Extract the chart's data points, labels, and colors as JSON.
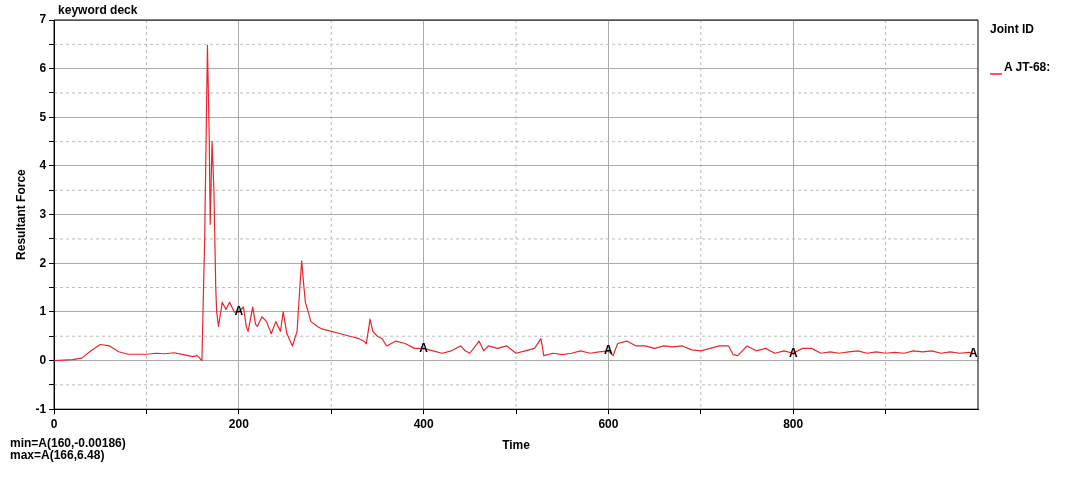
{
  "chart_data": {
    "type": "line",
    "title": "keyword deck",
    "xlabel": "Time",
    "ylabel": "Resultant Force",
    "legend_title": "Joint ID",
    "legend": "top right",
    "grid": true,
    "marker": "none",
    "line_style": "solid",
    "xlim": [
      0,
      1000
    ],
    "ylim": [
      -1,
      7
    ],
    "xticks": [
      0,
      {
        "value": 100,
        "label": null
      },
      200,
      {
        "value": 300,
        "label": null
      },
      400,
      {
        "value": 500,
        "label": null
      },
      600,
      {
        "value": 700,
        "label": null
      },
      800,
      {
        "value": 900,
        "label": null
      }
    ],
    "yticks": [
      -1,
      {
        "value": -0.5,
        "label": null
      },
      0,
      {
        "value": 0.5,
        "label": null
      },
      1,
      {
        "value": 1.5,
        "label": null
      },
      2,
      {
        "value": 2.5,
        "label": null
      },
      3,
      {
        "value": 3.5,
        "label": null
      },
      4,
      {
        "value": 4.5,
        "label": null
      },
      5,
      {
        "value": 5.5,
        "label": null
      },
      6,
      {
        "value": 6.5,
        "label": null
      },
      7
    ],
    "series": [
      {
        "name": "A JT-68:",
        "color": "#e8262b",
        "x": [
          0,
          20,
          30,
          40,
          50,
          60,
          70,
          80,
          100,
          110,
          120,
          130,
          140,
          150,
          155,
          160,
          163,
          166,
          168,
          169,
          171,
          173,
          175,
          176,
          178,
          182,
          186,
          190,
          195,
          200,
          205,
          208,
          210,
          215,
          218,
          220,
          225,
          230,
          235,
          240,
          245,
          248,
          252,
          258,
          263,
          266,
          268,
          270,
          272,
          275,
          278,
          285,
          290,
          300,
          310,
          320,
          330,
          335,
          338,
          342,
          345,
          350,
          355,
          360,
          370,
          380,
          390,
          400,
          410,
          420,
          430,
          440,
          445,
          450,
          460,
          465,
          470,
          480,
          490,
          500,
          510,
          520,
          527,
          530,
          540,
          550,
          560,
          570,
          580,
          590,
          600,
          605,
          610,
          620,
          630,
          640,
          650,
          660,
          670,
          680,
          690,
          700,
          710,
          720,
          730,
          735,
          740,
          750,
          760,
          770,
          780,
          790,
          800,
          810,
          820,
          830,
          840,
          850,
          860,
          870,
          880,
          890,
          900,
          910,
          920,
          930,
          940,
          950,
          960,
          970,
          980,
          990,
          995
        ],
        "values": [
          0,
          0.02,
          0.05,
          0.2,
          0.33,
          0.3,
          0.18,
          0.13,
          0.13,
          0.15,
          0.14,
          0.16,
          0.12,
          0.08,
          0.1,
          0,
          2.5,
          6.48,
          4.5,
          2.8,
          4.5,
          3.5,
          1.5,
          1.0,
          0.7,
          1.2,
          1.05,
          1.2,
          1.0,
          1.0,
          1.1,
          0.7,
          0.6,
          1.1,
          0.75,
          0.7,
          0.9,
          0.8,
          0.55,
          0.8,
          0.6,
          1.0,
          0.55,
          0.3,
          0.6,
          1.5,
          2.05,
          1.6,
          1.2,
          1.0,
          0.8,
          0.7,
          0.65,
          0.6,
          0.55,
          0.5,
          0.45,
          0.4,
          0.35,
          0.85,
          0.6,
          0.5,
          0.45,
          0.3,
          0.4,
          0.35,
          0.25,
          0.25,
          0.2,
          0.15,
          0.2,
          0.3,
          0.2,
          0.15,
          0.4,
          0.2,
          0.3,
          0.25,
          0.3,
          0.15,
          0.2,
          0.25,
          0.45,
          0.1,
          0.15,
          0.12,
          0.15,
          0.2,
          0.15,
          0.18,
          0.2,
          0.1,
          0.35,
          0.4,
          0.3,
          0.3,
          0.25,
          0.3,
          0.28,
          0.3,
          0.22,
          0.2,
          0.25,
          0.3,
          0.3,
          0.12,
          0.1,
          0.3,
          0.2,
          0.25,
          0.15,
          0.2,
          0.15,
          0.25,
          0.25,
          0.15,
          0.18,
          0.15,
          0.18,
          0.2,
          0.15,
          0.18,
          0.15,
          0.17,
          0.15,
          0.2,
          0.18,
          0.2,
          0.15,
          0.18,
          0.15,
          0.17,
          0.15
        ]
      }
    ],
    "annotations": [
      {
        "text": "A",
        "x": 200,
        "y": 1.0
      },
      {
        "text": "A",
        "x": 400,
        "y": 0.25
      },
      {
        "text": "A",
        "x": 600,
        "y": 0.2
      },
      {
        "text": "A",
        "x": 800,
        "y": 0.15
      },
      {
        "text": "A",
        "x": 995,
        "y": 0.15
      },
      "min=A(160,-0.00186)",
      "max=A(166,6.48)"
    ]
  }
}
